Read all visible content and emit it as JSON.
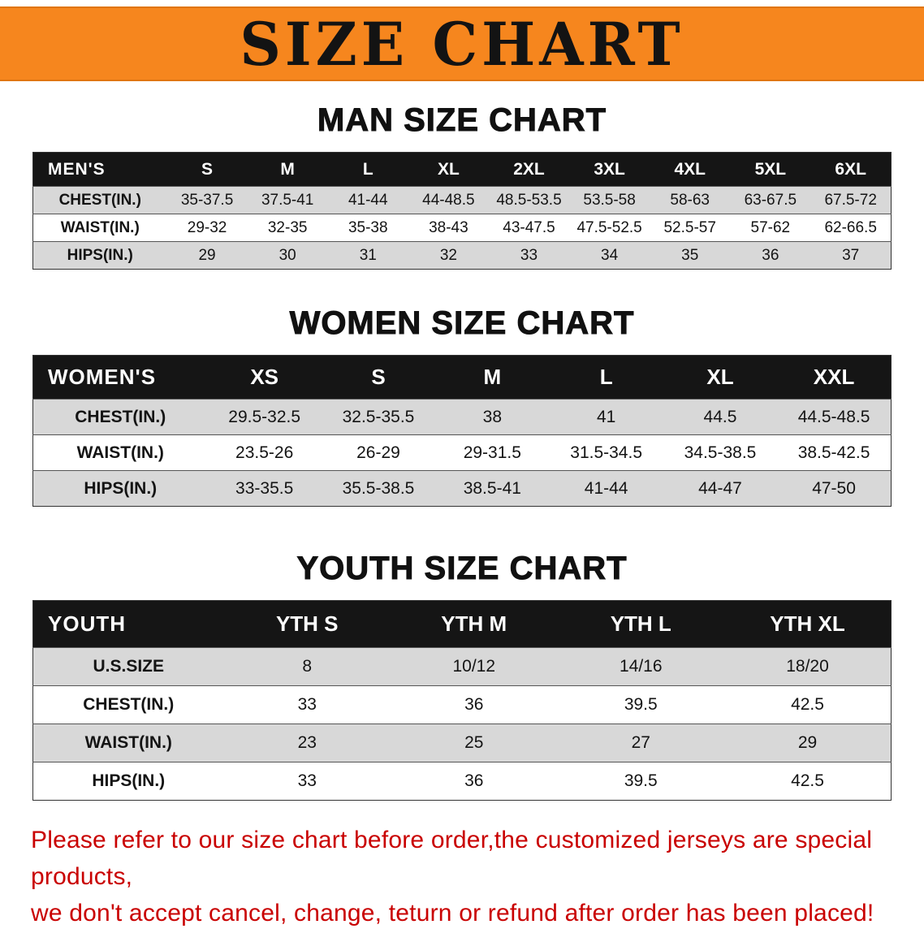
{
  "banner": {
    "title": "SIZE CHART"
  },
  "colors": {
    "banner_bg": "#F6861E",
    "table_header_bg": "#151515",
    "row_alt_gray": "#D8D8D8",
    "disclaimer_red": "#C90000"
  },
  "sections": {
    "men": {
      "heading": "MAN SIZE CHART",
      "table": {
        "label": "MEN'S",
        "columns": [
          "S",
          "M",
          "L",
          "XL",
          "2XL",
          "3XL",
          "4XL",
          "5XL",
          "6XL"
        ],
        "rows": [
          {
            "label": "CHEST(IN.)",
            "values": [
              "35-37.5",
              "37.5-41",
              "41-44",
              "44-48.5",
              "48.5-53.5",
              "53.5-58",
              "58-63",
              "63-67.5",
              "67.5-72"
            ]
          },
          {
            "label": "WAIST(IN.)",
            "values": [
              "29-32",
              "32-35",
              "35-38",
              "38-43",
              "43-47.5",
              "47.5-52.5",
              "52.5-57",
              "57-62",
              "62-66.5"
            ]
          },
          {
            "label": "HIPS(IN.)",
            "values": [
              "29",
              "30",
              "31",
              "32",
              "33",
              "34",
              "35",
              "36",
              "37"
            ]
          }
        ]
      }
    },
    "women": {
      "heading": "WOMEN SIZE CHART",
      "table": {
        "label": "WOMEN'S",
        "columns": [
          "XS",
          "S",
          "M",
          "L",
          "XL",
          "XXL"
        ],
        "rows": [
          {
            "label": "CHEST(IN.)",
            "values": [
              "29.5-32.5",
              "32.5-35.5",
              "38",
              "41",
              "44.5",
              "44.5-48.5"
            ]
          },
          {
            "label": "WAIST(IN.)",
            "values": [
              "23.5-26",
              "26-29",
              "29-31.5",
              "31.5-34.5",
              "34.5-38.5",
              "38.5-42.5"
            ]
          },
          {
            "label": "HIPS(IN.)",
            "values": [
              "33-35.5",
              "35.5-38.5",
              "38.5-41",
              "41-44",
              "44-47",
              "47-50"
            ]
          }
        ]
      }
    },
    "youth": {
      "heading": "YOUTH SIZE CHART",
      "table": {
        "label": "YOUTH",
        "columns": [
          "YTH S",
          "YTH M",
          "YTH L",
          "YTH XL"
        ],
        "rows": [
          {
            "label": "U.S.SIZE",
            "values": [
              "8",
              "10/12",
              "14/16",
              "18/20"
            ]
          },
          {
            "label": "CHEST(IN.)",
            "values": [
              "33",
              "36",
              "39.5",
              "42.5"
            ]
          },
          {
            "label": "WAIST(IN.)",
            "values": [
              "23",
              "25",
              "27",
              "29"
            ]
          },
          {
            "label": "HIPS(IN.)",
            "values": [
              "33",
              "36",
              "39.5",
              "42.5"
            ]
          }
        ]
      }
    }
  },
  "disclaimer": {
    "line1": "Please refer to our size chart before order,the customized jerseys are special products,",
    "line2": "we don't accept cancel, change, teturn or refund after order has been placed!"
  }
}
